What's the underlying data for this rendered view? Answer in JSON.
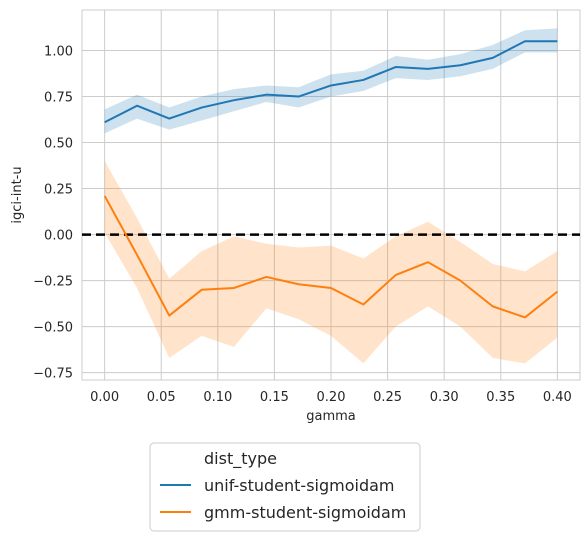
{
  "chart_data": {
    "type": "line",
    "xlabel": "gamma",
    "ylabel": "igci-int-u",
    "xlim": [
      -0.02,
      0.42
    ],
    "ylim": [
      -0.79,
      1.22
    ],
    "xticks": [
      0.0,
      0.05,
      0.1,
      0.15,
      0.2,
      0.25,
      0.3,
      0.35,
      0.4
    ],
    "xtick_labels": [
      "0.00",
      "0.05",
      "0.10",
      "0.15",
      "0.20",
      "0.25",
      "0.30",
      "0.35",
      "0.40"
    ],
    "yticks": [
      -0.75,
      -0.5,
      -0.25,
      0.0,
      0.25,
      0.5,
      0.75,
      1.0
    ],
    "ytick_labels": [
      "−0.75",
      "−0.50",
      "−0.25",
      "0.00",
      "0.25",
      "0.50",
      "0.75",
      "1.00"
    ],
    "grid": true,
    "reference_line": {
      "y": 0.0,
      "style": "dashed",
      "color": "#000000"
    },
    "x": [
      0.0,
      0.0286,
      0.0571,
      0.0857,
      0.1143,
      0.1429,
      0.1714,
      0.2,
      0.2286,
      0.2571,
      0.2857,
      0.3143,
      0.3429,
      0.3714,
      0.4
    ],
    "legend": {
      "title": "dist_type",
      "placement": "below"
    },
    "series": [
      {
        "name": "unif-student-sigmoidam",
        "color": "#1f77b4",
        "values": [
          0.61,
          0.7,
          0.63,
          0.69,
          0.73,
          0.76,
          0.75,
          0.81,
          0.84,
          0.91,
          0.9,
          0.92,
          0.96,
          1.05,
          1.05
        ],
        "lower": [
          0.55,
          0.63,
          0.57,
          0.62,
          0.67,
          0.72,
          0.69,
          0.75,
          0.78,
          0.85,
          0.84,
          0.86,
          0.9,
          0.99,
          0.99
        ],
        "upper": [
          0.68,
          0.76,
          0.69,
          0.75,
          0.79,
          0.81,
          0.8,
          0.87,
          0.89,
          0.97,
          0.95,
          0.98,
          1.03,
          1.11,
          1.12
        ]
      },
      {
        "name": "gmm-student-sigmoidam",
        "color": "#ff7f0e",
        "values": [
          0.21,
          -0.11,
          -0.44,
          -0.3,
          -0.29,
          -0.23,
          -0.27,
          -0.29,
          -0.38,
          -0.22,
          -0.15,
          -0.25,
          -0.39,
          -0.45,
          -0.31
        ],
        "lower": [
          0.01,
          -0.29,
          -0.67,
          -0.55,
          -0.61,
          -0.4,
          -0.46,
          -0.55,
          -0.7,
          -0.5,
          -0.39,
          -0.5,
          -0.67,
          -0.7,
          -0.56
        ],
        "upper": [
          0.4,
          0.09,
          -0.24,
          -0.09,
          -0.01,
          -0.05,
          -0.07,
          -0.06,
          -0.13,
          -0.01,
          0.07,
          -0.04,
          -0.16,
          -0.2,
          -0.09
        ]
      }
    ]
  }
}
